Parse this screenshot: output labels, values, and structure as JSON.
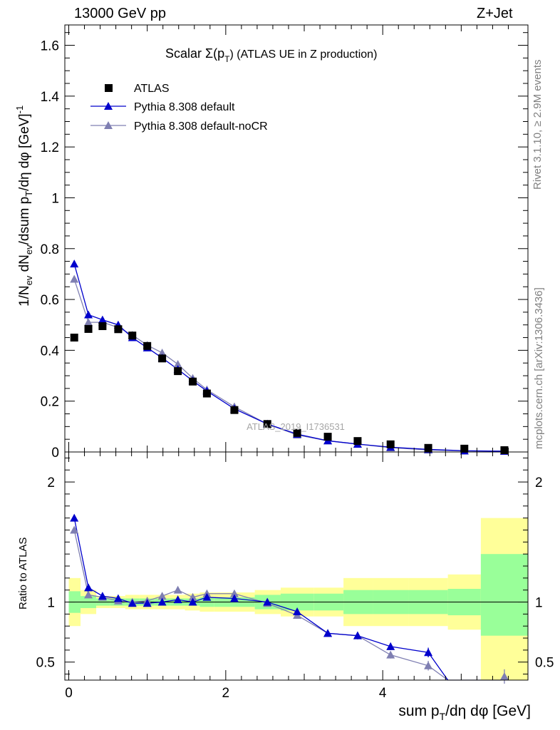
{
  "header": {
    "energy_label": "13000 GeV pp",
    "process_label": "Z+Jet",
    "title_prefix": "Scalar ",
    "title_sigma": "Σ(p",
    "title_sub": "T",
    "title_suffix": ") (ATLAS UE in Z production)"
  },
  "side_labels": {
    "rivet": "Rivet 3.1.10, ≥ 2.9M events",
    "mcplots": "mcplots.cern.ch [arXiv:1306.3436]"
  },
  "watermark": "ATLAS_2019_I1736531",
  "colors": {
    "atlas": "#000000",
    "default": "#0000cc",
    "nocr": "#7f7fb2",
    "band_inner": "#99ff99",
    "band_outer": "#ffff99"
  },
  "chart_data": [
    {
      "type": "scatter",
      "panel": "main",
      "ylabel": "1/N_ev dN_ev/dsum p_T/dη dφ [GeV]^-1",
      "xlim": [
        -0.05,
        5.85
      ],
      "ylim": [
        0,
        1.68
      ],
      "yticks": [
        0,
        0.2,
        0.4,
        0.6,
        0.8,
        1,
        1.2,
        1.4,
        1.6
      ],
      "ytick_labels": [
        "0",
        "0.2",
        "0.4",
        "0.6",
        "0.8",
        "1",
        "1.2",
        "1.4",
        "1.6"
      ],
      "legend_position": "top-left",
      "series": [
        {
          "name": "ATLAS",
          "x": [
            0.07,
            0.25,
            0.43,
            0.63,
            0.81,
            1.0,
            1.19,
            1.39,
            1.58,
            1.76,
            2.11,
            2.53,
            2.91,
            3.3,
            3.68,
            4.1,
            4.58,
            5.04,
            5.55
          ],
          "y": [
            0.45,
            0.484,
            0.495,
            0.483,
            0.458,
            0.417,
            0.368,
            0.318,
            0.277,
            0.23,
            0.165,
            0.11,
            0.075,
            0.06,
            0.043,
            0.03,
            0.016,
            0.013,
            0.007
          ]
        },
        {
          "name": "Pythia 8.308 default",
          "x": [
            0.07,
            0.25,
            0.43,
            0.63,
            0.81,
            1.0,
            1.19,
            1.39,
            1.58,
            1.76,
            2.11,
            2.53,
            2.91,
            3.3,
            3.68,
            4.1,
            4.58,
            5.04,
            5.55
          ],
          "y": [
            0.74,
            0.54,
            0.52,
            0.5,
            0.45,
            0.41,
            0.37,
            0.325,
            0.28,
            0.24,
            0.17,
            0.11,
            0.07,
            0.044,
            0.031,
            0.019,
            0.01,
            0.005,
            0.003
          ]
        },
        {
          "name": "Pythia 8.308 default-noCR",
          "x": [
            0.07,
            0.25,
            0.43,
            0.63,
            0.81,
            1.0,
            1.19,
            1.39,
            1.58,
            1.76,
            2.11,
            2.53,
            2.91,
            3.3,
            3.68,
            4.1,
            4.58,
            5.04,
            5.55
          ],
          "y": [
            0.68,
            0.51,
            0.51,
            0.49,
            0.46,
            0.42,
            0.39,
            0.345,
            0.29,
            0.245,
            0.178,
            0.11,
            0.067,
            0.044,
            0.031,
            0.017,
            0.008,
            0.004,
            0.003
          ]
        }
      ]
    },
    {
      "type": "line",
      "panel": "ratio",
      "ylabel": "Ratio to ATLAS",
      "xlabel": "sum p_T/dη dφ [GeV]",
      "xlim": [
        -0.05,
        5.85
      ],
      "ylim": [
        0.35,
        2.25
      ],
      "yticks": [
        0.5,
        1,
        2
      ],
      "ytick_labels": [
        "0.5",
        "1",
        "2"
      ],
      "xticks": [
        0,
        2,
        4
      ],
      "xtick_labels": [
        "0",
        "2",
        "4"
      ],
      "bands": {
        "edges": [
          0.0,
          0.15,
          0.35,
          0.53,
          0.72,
          0.9,
          1.1,
          1.29,
          1.48,
          1.67,
          1.85,
          2.37,
          2.7,
          3.12,
          3.5,
          3.88,
          4.33,
          4.83,
          5.25,
          5.85
        ],
        "inner_lo": [
          0.91,
          0.95,
          0.97,
          0.97,
          0.97,
          0.97,
          0.97,
          0.97,
          0.97,
          0.96,
          0.96,
          0.94,
          0.93,
          0.93,
          0.9,
          0.9,
          0.9,
          0.89,
          0.72
        ],
        "inner_hi": [
          1.09,
          1.05,
          1.03,
          1.03,
          1.03,
          1.03,
          1.03,
          1.03,
          1.03,
          1.04,
          1.04,
          1.06,
          1.07,
          1.07,
          1.1,
          1.1,
          1.1,
          1.11,
          1.4
        ],
        "outer_lo": [
          0.8,
          0.9,
          0.95,
          0.95,
          0.94,
          0.94,
          0.94,
          0.94,
          0.93,
          0.92,
          0.92,
          0.9,
          0.88,
          0.88,
          0.8,
          0.8,
          0.8,
          0.77,
          0.35
        ],
        "outer_hi": [
          1.2,
          1.1,
          1.05,
          1.05,
          1.06,
          1.06,
          1.06,
          1.06,
          1.07,
          1.08,
          1.08,
          1.1,
          1.12,
          1.12,
          1.2,
          1.2,
          1.2,
          1.23,
          1.7
        ]
      },
      "series": [
        {
          "name": "Pythia 8.308 default",
          "x": [
            0.07,
            0.25,
            0.43,
            0.63,
            0.81,
            1.0,
            1.19,
            1.39,
            1.58,
            1.76,
            2.11,
            2.53,
            2.91,
            3.3,
            3.68,
            4.1,
            4.58,
            4.83
          ],
          "y": [
            1.7,
            1.12,
            1.05,
            1.03,
            0.99,
            0.99,
            1.0,
            1.02,
            1.0,
            1.04,
            1.03,
            1.0,
            0.92,
            0.74,
            0.72,
            0.63,
            0.58,
            0.35
          ],
          "err": [
            0.02,
            0.01,
            0.01,
            0.01,
            0.01,
            0.01,
            0.01,
            0.01,
            0.01,
            0.01,
            0.01,
            0.01,
            0.02,
            0.02,
            0.03,
            0.03,
            0.04,
            0
          ]
        },
        {
          "name": "Pythia 8.308 default-noCR",
          "x": [
            0.07,
            0.25,
            0.43,
            0.63,
            0.81,
            1.0,
            1.19,
            1.39,
            1.58,
            1.76,
            2.11,
            2.53,
            2.91,
            3.3,
            3.68,
            4.1,
            4.58,
            4.83,
            5.5,
            5.55
          ],
          "y": [
            1.6,
            1.06,
            1.04,
            1.01,
            1.0,
            1.01,
            1.05,
            1.1,
            1.04,
            1.07,
            1.07,
            0.99,
            0.89,
            0.74,
            0.72,
            0.56,
            0.47,
            0.35,
            0.35,
            0.38
          ],
          "err": [
            0.02,
            0.01,
            0.01,
            0.01,
            0.01,
            0.01,
            0.01,
            0.01,
            0.01,
            0.01,
            0.01,
            0.01,
            0.02,
            0.02,
            0.03,
            0.03,
            0.04,
            0,
            0,
            0.06
          ]
        }
      ]
    }
  ]
}
